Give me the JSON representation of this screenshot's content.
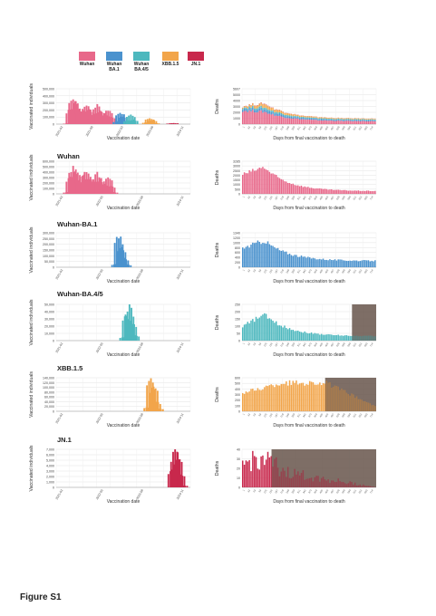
{
  "legend": {
    "items": [
      {
        "label": "Wuhan",
        "color": "#E8688A"
      },
      {
        "label": "Wuhan\nBA.1",
        "color": "#4A92CE"
      },
      {
        "label": "Wuhan\nBA.4/5",
        "color": "#4DB8BE"
      },
      {
        "label": "XBB.1.5",
        "color": "#F2A54A"
      },
      {
        "label": "JN.1",
        "color": "#C8284C"
      }
    ]
  },
  "rows": [
    {
      "title": ""
    },
    {
      "title": "Wuhan"
    },
    {
      "title": "Wuhan-BA.1"
    },
    {
      "title": "Wuhan-BA.4/5"
    },
    {
      "title": "XBB.1.5"
    },
    {
      "title": "JN.1"
    }
  ],
  "figure_label": "Figure S1",
  "chart_data": [
    {
      "type": "bar",
      "stacked": true,
      "xlabel": "Vaccination date",
      "ylabel": "Vaccinated individuals",
      "yticks": [
        "0",
        "100,000",
        "200,000",
        "300,000",
        "400,000",
        "500,000"
      ],
      "ylim": [
        0,
        500000
      ],
      "xticks": [
        "2021-02",
        "2021-08",
        "2022-03",
        "2023-09",
        "2024-11"
      ],
      "grid": true,
      "series": [
        {
          "name": "Wuhan",
          "color": "#E8688A",
          "values": [
            [
              0.08,
              0.02
            ],
            [
              0.1,
              0.42
            ],
            [
              0.12,
              0.72
            ],
            [
              0.14,
              0.62
            ],
            [
              0.16,
              0.4
            ],
            [
              0.18,
              0.15
            ],
            [
              0.2,
              0.4
            ],
            [
              0.22,
              0.58
            ],
            [
              0.24,
              0.42
            ],
            [
              0.26,
              0.18
            ],
            [
              0.28,
              0.32
            ],
            [
              0.3,
              0.52
            ],
            [
              0.32,
              0.35
            ],
            [
              0.34,
              0.15
            ],
            [
              0.36,
              0.28
            ],
            [
              0.38,
              0.4
            ],
            [
              0.4,
              0.22
            ],
            [
              0.42,
              0.05
            ]
          ]
        },
        {
          "name": "Wuhan BA.1",
          "color": "#4A92CE",
          "values": [
            [
              0.45,
              0.08
            ],
            [
              0.47,
              0.34
            ],
            [
              0.49,
              0.22
            ],
            [
              0.51,
              0.05
            ]
          ]
        },
        {
          "name": "Wuhan BA.4/5",
          "color": "#4DB8BE",
          "values": [
            [
              0.53,
              0.1
            ],
            [
              0.55,
              0.26
            ],
            [
              0.57,
              0.12
            ]
          ]
        },
        {
          "name": "XBB.1.5",
          "color": "#F2A54A",
          "values": [
            [
              0.67,
              0.05
            ],
            [
              0.69,
              0.18
            ],
            [
              0.71,
              0.12
            ],
            [
              0.73,
              0.03
            ]
          ]
        },
        {
          "name": "JN.1",
          "color": "#C8284C",
          "values": [
            [
              0.85,
              0.02
            ],
            [
              0.87,
              0.03
            ]
          ]
        }
      ]
    },
    {
      "type": "bar",
      "stacked": true,
      "xlabel": "Days from final vaccination to death",
      "ylabel": "Deaths",
      "yticks": [
        "0",
        "1000",
        "2000",
        "3000",
        "4000",
        "5000",
        "5607"
      ],
      "ylim": [
        0,
        5607
      ],
      "grid": true,
      "series_note": "stacked colored bars",
      "series": [
        {
          "name": "Wuhan",
          "color": "#E8688A",
          "profile": "rise-decay",
          "peak": 0.35,
          "start": 0.38,
          "tail": 0.08
        },
        {
          "name": "Wuhan BA.1",
          "color": "#4A92CE",
          "profile": "rise-decay",
          "peak": 0.08,
          "start": 0.06,
          "tail": 0.03
        },
        {
          "name": "Wuhan BA.4/5",
          "color": "#4DB8BE",
          "profile": "rise-decay",
          "peak": 0.05,
          "start": 0.03,
          "tail": 0.02
        },
        {
          "name": "XBB.1.5",
          "color": "#F2A54A",
          "profile": "rise-decay",
          "peak": 0.1,
          "start": 0.03,
          "tail": 0.02
        },
        {
          "name": "JN.1",
          "color": "#C8284C",
          "profile": "rise-decay",
          "peak": 0.01,
          "start": 0.005,
          "tail": 0.002
        }
      ]
    },
    {
      "type": "bar",
      "xlabel": "Vaccination date",
      "ylabel": "Vaccinated individuals",
      "yticks": [
        "0",
        "100,000",
        "200,000",
        "300,000",
        "400,000",
        "500,000",
        "600,000"
      ],
      "ylim": [
        0,
        600000
      ],
      "xticks": [
        "2021-02",
        "2022-05",
        "2023-08",
        "2024-11"
      ],
      "grid": true,
      "series": [
        {
          "name": "Wuhan",
          "color": "#E8688A",
          "values": [
            [
              0.08,
              0.05
            ],
            [
              0.1,
              0.5
            ],
            [
              0.12,
              0.8
            ],
            [
              0.14,
              0.7
            ],
            [
              0.16,
              0.4
            ],
            [
              0.18,
              0.15
            ],
            [
              0.2,
              0.55
            ],
            [
              0.22,
              0.72
            ],
            [
              0.24,
              0.5
            ],
            [
              0.26,
              0.2
            ],
            [
              0.28,
              0.4
            ],
            [
              0.3,
              0.62
            ],
            [
              0.32,
              0.45
            ],
            [
              0.34,
              0.15
            ],
            [
              0.36,
              0.3
            ],
            [
              0.38,
              0.5
            ],
            [
              0.4,
              0.25
            ],
            [
              0.42,
              0.05
            ]
          ]
        }
      ]
    },
    {
      "type": "bar",
      "xlabel": "Days from final vaccination to death",
      "ylabel": "Deaths",
      "yticks": [
        "0",
        "500",
        "1000",
        "1500",
        "2000",
        "2500",
        "3000",
        "3285"
      ],
      "ylim": [
        0,
        3285
      ],
      "grid": true,
      "series": [
        {
          "name": "Wuhan",
          "color": "#E8688A",
          "profile": "rise-decay",
          "peak": 0.82,
          "start": 0.6,
          "tail": 0.08
        }
      ]
    },
    {
      "type": "bar",
      "xlabel": "Vaccination date",
      "ylabel": "Vaccinated individuals",
      "yticks": [
        "0",
        "50,000",
        "100,000",
        "150,000",
        "200,000",
        "250,000",
        "300,000"
      ],
      "ylim": [
        0,
        300000
      ],
      "xticks": [
        "2021-02",
        "2022-05",
        "2023-08",
        "2024-11"
      ],
      "grid": true,
      "series": [
        {
          "name": "Wuhan-BA.1",
          "color": "#4A92CE",
          "values": [
            [
              0.44,
              0.1
            ],
            [
              0.46,
              0.92
            ],
            [
              0.48,
              0.6
            ],
            [
              0.5,
              0.25
            ],
            [
              0.52,
              0.08
            ]
          ]
        }
      ]
    },
    {
      "type": "bar",
      "xlabel": "Days from final vaccination to death",
      "ylabel": "Deaths",
      "yticks": [
        "0",
        "200",
        "400",
        "600",
        "800",
        "1000",
        "1200",
        "1340"
      ],
      "ylim": [
        0,
        1340
      ],
      "grid": true,
      "series": [
        {
          "name": "Wuhan-BA.1",
          "color": "#4A92CE",
          "profile": "rise-decay",
          "peak": 0.78,
          "start": 0.55,
          "tail": 0.18
        }
      ]
    },
    {
      "type": "bar",
      "xlabel": "Vaccination date",
      "ylabel": "Vaccinated individuals",
      "yticks": [
        "0",
        "10,000",
        "20,000",
        "30,000",
        "40,000",
        "50,000"
      ],
      "ylim": [
        0,
        50000
      ],
      "xticks": [
        "2021-02",
        "2022-05",
        "2023-08",
        "2024-11"
      ],
      "grid": true,
      "series": [
        {
          "name": "Wuhan-BA.4/5",
          "color": "#4DB8BE",
          "values": [
            [
              0.5,
              0.1
            ],
            [
              0.52,
              0.7
            ],
            [
              0.54,
              0.95
            ],
            [
              0.56,
              0.5
            ],
            [
              0.58,
              0.15
            ]
          ]
        }
      ]
    },
    {
      "type": "bar",
      "xlabel": "Days from final vaccination to death",
      "ylabel": "Deaths",
      "yticks": [
        "0",
        "50",
        "100",
        "150",
        "200",
        "250"
      ],
      "ylim": [
        0,
        273
      ],
      "grid": true,
      "shaded_from": 0.82,
      "series": [
        {
          "name": "Wuhan-BA.4/5",
          "color": "#4DB8BE",
          "profile": "rise-decay",
          "peak": 0.72,
          "start": 0.4,
          "tail": 0.12
        }
      ]
    },
    {
      "type": "bar",
      "xlabel": "Vaccination date",
      "ylabel": "Vaccinated individuals",
      "yticks": [
        "0",
        "20,000",
        "40,000",
        "60,000",
        "80,000",
        "100,000",
        "120,000",
        "140,000"
      ],
      "ylim": [
        0,
        140000
      ],
      "xticks": [
        "2021-02",
        "2022-05",
        "2023-08",
        "2024-11"
      ],
      "grid": true,
      "series": [
        {
          "name": "XBB.1.5",
          "color": "#F2A54A",
          "values": [
            [
              0.68,
              0.12
            ],
            [
              0.7,
              0.95
            ],
            [
              0.72,
              0.75
            ],
            [
              0.74,
              0.3
            ],
            [
              0.76,
              0.08
            ]
          ]
        }
      ]
    },
    {
      "type": "bar",
      "xlabel": "Days from final vaccination to death",
      "ylabel": "Deaths",
      "yticks": [
        "0",
        "100",
        "200",
        "300",
        "400",
        "500",
        "600"
      ],
      "ylim": [
        0,
        660
      ],
      "grid": true,
      "shaded_from": 0.62,
      "series": [
        {
          "name": "XBB.1.5",
          "color": "#F2A54A",
          "profile": "plateau",
          "peak": 0.85,
          "start": 0.55,
          "tail": 0.85
        }
      ]
    },
    {
      "type": "bar",
      "xlabel": "Vaccination date",
      "ylabel": "Vaccinated individuals",
      "yticks": [
        "0",
        "1,000",
        "2,000",
        "3,000",
        "4,000",
        "5,000",
        "6,000",
        "7,000"
      ],
      "ylim": [
        0,
        7800
      ],
      "xticks": [
        "2021-02",
        "2022-05",
        "2023-08",
        "2024-11"
      ],
      "grid": true,
      "series": [
        {
          "name": "JN.1",
          "color": "#C8284C",
          "values": [
            [
              0.86,
              0.5
            ],
            [
              0.88,
              0.98
            ],
            [
              0.9,
              0.85
            ],
            [
              0.92,
              0.35
            ],
            [
              0.94,
              0.05
            ]
          ]
        }
      ]
    },
    {
      "type": "bar",
      "xlabel": "Days from final vaccination to death",
      "ylabel": "Deaths",
      "yticks": [
        "0",
        "10",
        "20",
        "30",
        "40"
      ],
      "ylim": [
        0,
        45
      ],
      "grid": true,
      "shaded_from": 0.22,
      "series": [
        {
          "name": "JN.1",
          "color": "#C8284C",
          "profile": "noisy",
          "peak": 0.75,
          "start": 0.5,
          "tail": 0.3,
          "end": 0.4
        }
      ]
    }
  ]
}
